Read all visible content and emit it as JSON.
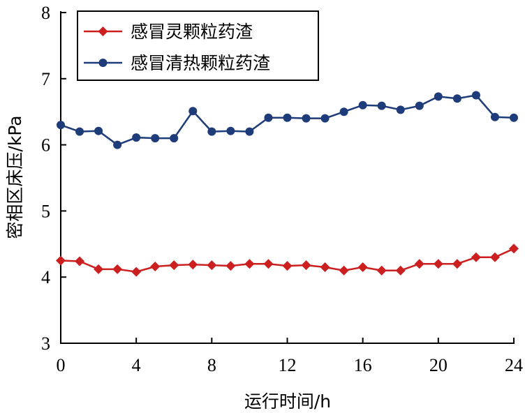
{
  "chart_data": {
    "type": "line",
    "xlabel": "运行时间/h",
    "ylabel": "密相区床压/kPa",
    "xlim": [
      0,
      24
    ],
    "ylim": [
      3,
      8
    ],
    "xticks": [
      "0",
      "4",
      "8",
      "12",
      "16",
      "20",
      "24"
    ],
    "yticks": [
      "3",
      "4",
      "5",
      "6",
      "7",
      "8"
    ],
    "grid": false,
    "legend_position": "top-left",
    "x": [
      0,
      1,
      2,
      3,
      4,
      5,
      6,
      7,
      8,
      9,
      10,
      11,
      12,
      13,
      14,
      15,
      16,
      17,
      18,
      19,
      20,
      21,
      22,
      23,
      24
    ],
    "series": [
      {
        "name": "感冒灵颗粒药渣",
        "color": "#cc1f1f",
        "marker": "diamond",
        "values": [
          4.25,
          4.24,
          4.12,
          4.12,
          4.08,
          4.16,
          4.18,
          4.19,
          4.18,
          4.17,
          4.2,
          4.2,
          4.17,
          4.18,
          4.15,
          4.1,
          4.15,
          4.1,
          4.1,
          4.2,
          4.2,
          4.2,
          4.3,
          4.3,
          4.43
        ]
      },
      {
        "name": "感冒清热颗粒药渣",
        "color": "#1f3c7a",
        "marker": "circle",
        "values": [
          6.3,
          6.2,
          6.21,
          6.0,
          6.11,
          6.1,
          6.1,
          6.51,
          6.2,
          6.21,
          6.2,
          6.41,
          6.41,
          6.4,
          6.4,
          6.5,
          6.6,
          6.59,
          6.53,
          6.59,
          6.73,
          6.7,
          6.75,
          6.42,
          6.41
        ]
      }
    ]
  }
}
